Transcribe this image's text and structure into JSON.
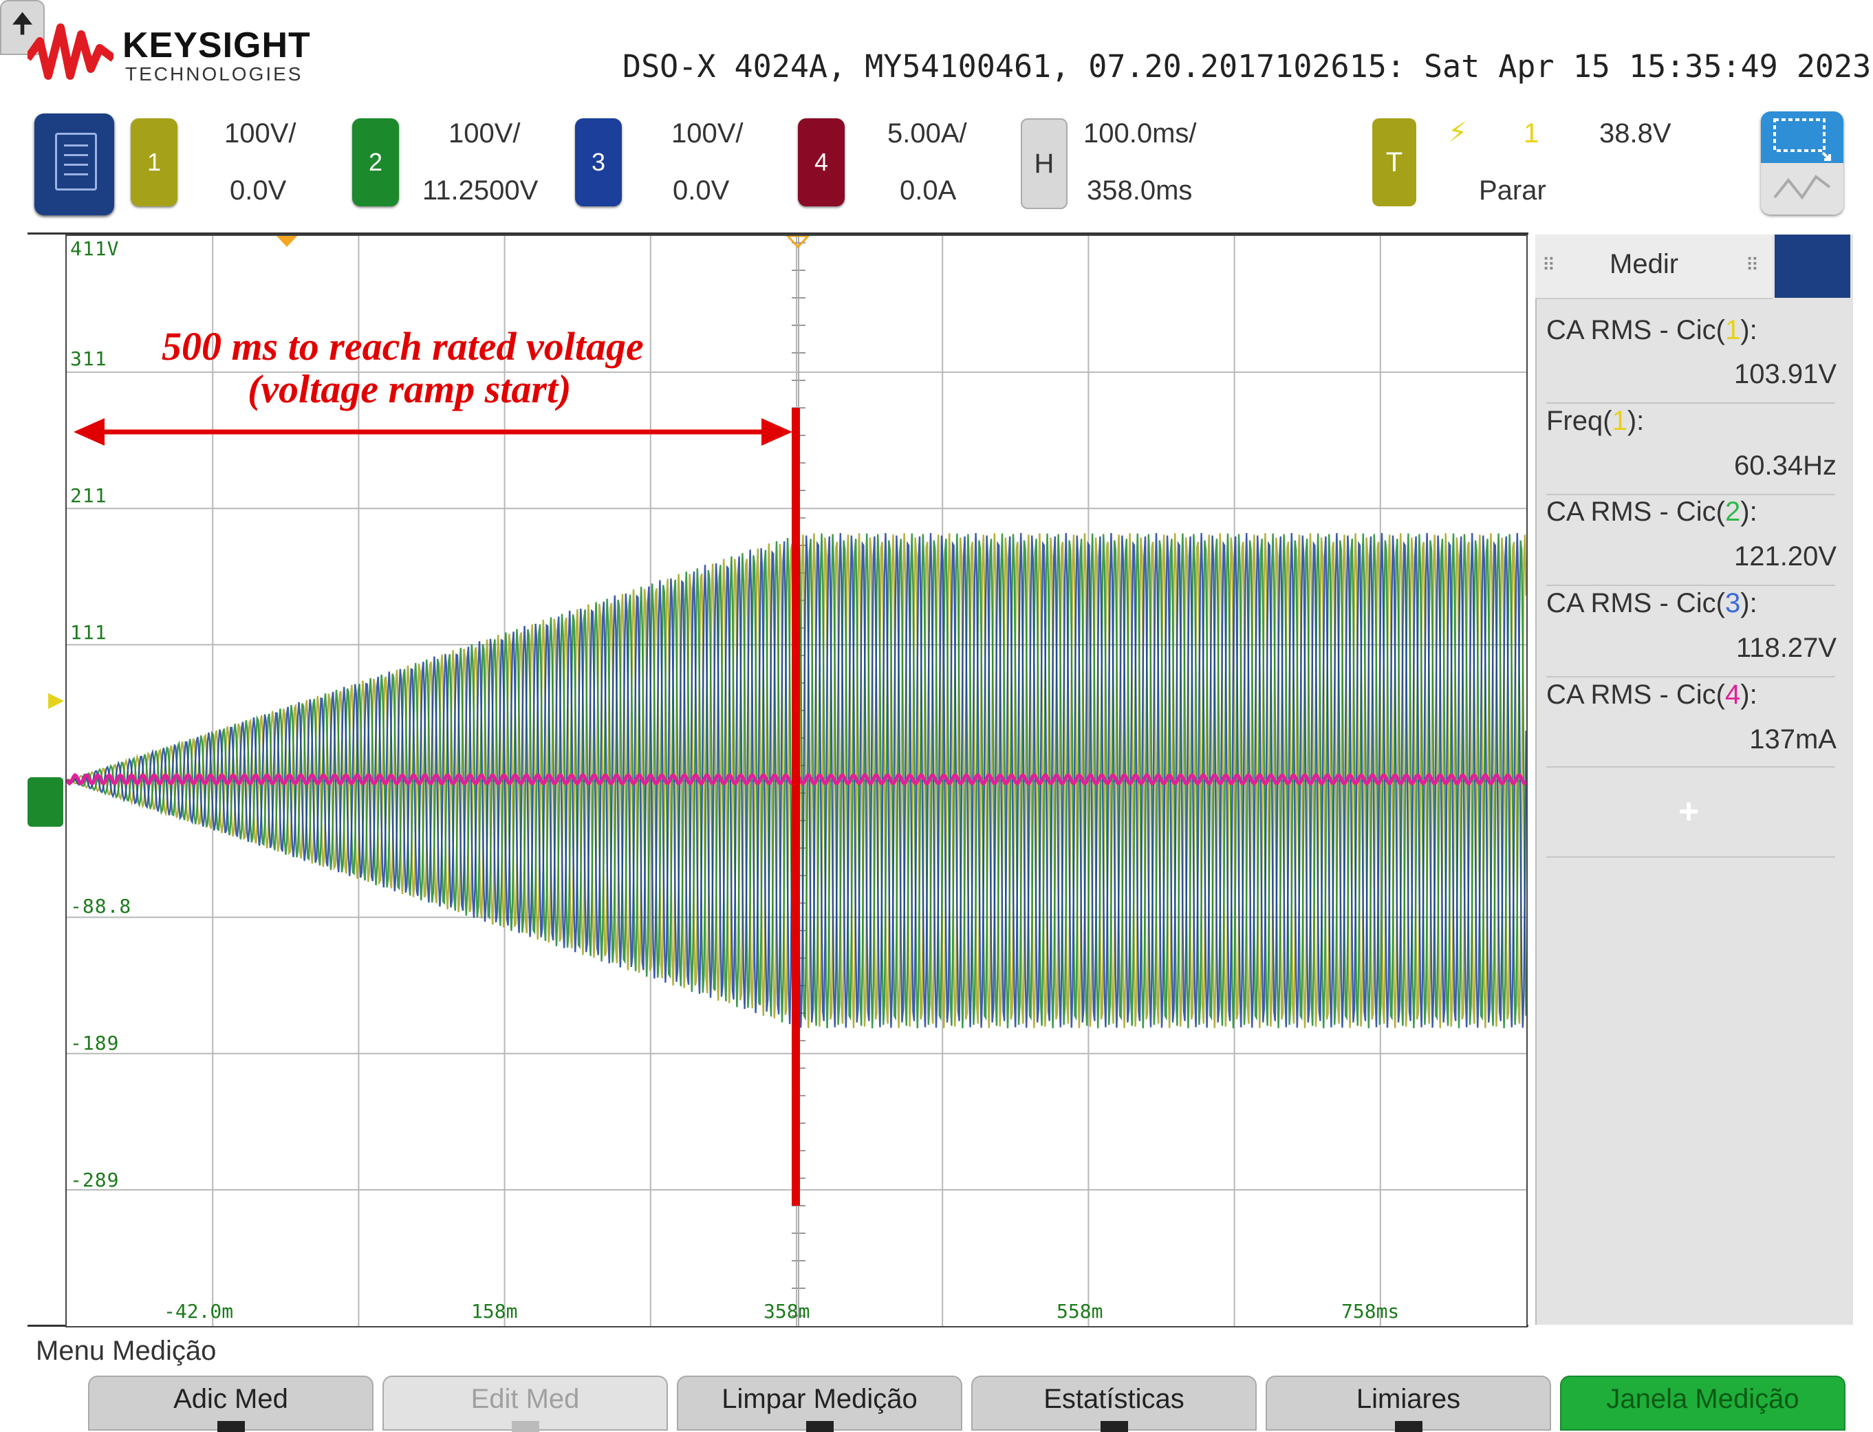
{
  "header": {
    "brand": "KEYSIGHT",
    "brand_sub": "TECHNOLOGIES",
    "scope_id": "DSO-X 4024A, MY54100461, 07.20.2017102615: Sat Apr 15 15:35:49 2023"
  },
  "channels": [
    {
      "num": "1",
      "scale": "100V/",
      "offset": "0.0V",
      "color": "#a5a21a"
    },
    {
      "num": "2",
      "scale": "100V/",
      "offset": "11.2500V",
      "color": "#1c8a2c"
    },
    {
      "num": "3",
      "scale": "100V/",
      "offset": "0.0V",
      "color": "#1b3f9a"
    },
    {
      "num": "4",
      "scale": "5.00A/",
      "offset": "0.0A",
      "color": "#8a0a26"
    }
  ],
  "horizontal": {
    "key": "H",
    "scale": "100.0ms/",
    "delay": "358.0ms"
  },
  "trigger": {
    "key": "T",
    "slope_icon": "⚡",
    "source": "1",
    "level": "38.8V",
    "status": "Parar"
  },
  "plot": {
    "y_labels": [
      "411V",
      "311",
      "211",
      "111",
      "-88.8",
      "-189",
      "-289"
    ],
    "x_labels": [
      "-42.0m",
      "158m",
      "358m",
      "558m",
      "758ms"
    ],
    "annotation_line1": "500 ms to reach rated voltage",
    "annotation_line2": "(voltage ramp start)"
  },
  "measurements": {
    "title": "Medir",
    "items": [
      {
        "pre": "CA RMS - Cic(",
        "ch": "1",
        "post": "):",
        "value": "103.91V",
        "color": "#e6d21a"
      },
      {
        "pre": "Freq(",
        "ch": "1",
        "post": "):",
        "value": "60.34Hz",
        "color": "#e6d21a"
      },
      {
        "pre": "CA RMS - Cic(",
        "ch": "2",
        "post": "):",
        "value": "121.20V",
        "color": "#2eb84a"
      },
      {
        "pre": "CA RMS - Cic(",
        "ch": "3",
        "post": "):",
        "value": "118.27V",
        "color": "#3a6ad8"
      },
      {
        "pre": "CA RMS - Cic(",
        "ch": "4",
        "post": "):",
        "value": "137mA",
        "color": "#e0209a"
      }
    ],
    "add_symbol": "+"
  },
  "softmenu": {
    "title": "Menu Medição",
    "up_symbol": "🠉",
    "keys": [
      {
        "label": "Adic Med",
        "state": "normal"
      },
      {
        "label": "Edit Med",
        "state": "disabled"
      },
      {
        "label": "Limpar Medição",
        "state": "normal"
      },
      {
        "label": "Estatísticas",
        "state": "normal"
      },
      {
        "label": "Limiares",
        "state": "normal"
      },
      {
        "label": "Janela Medição",
        "state": "active"
      }
    ]
  }
}
